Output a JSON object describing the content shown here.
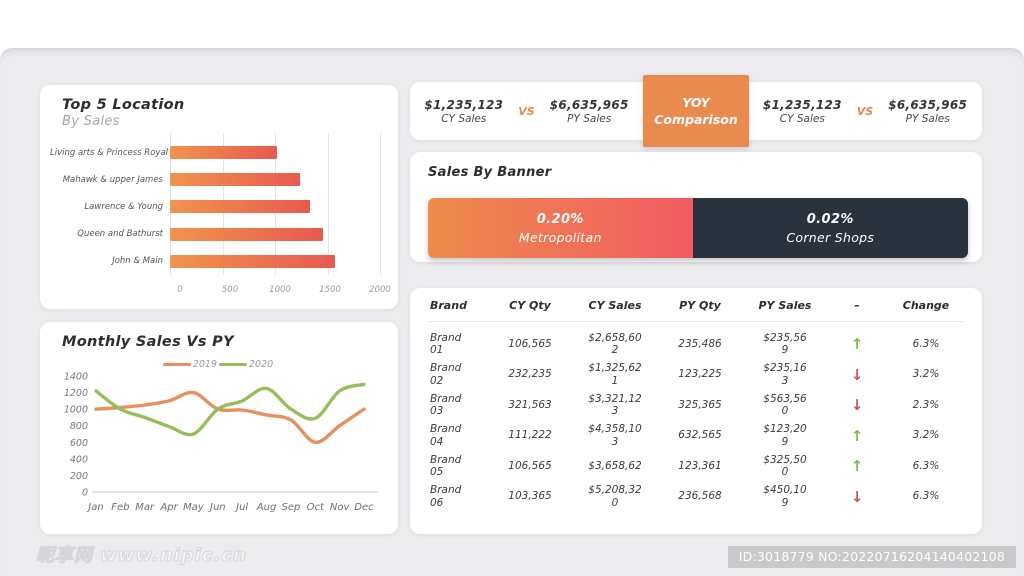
{
  "meta": {
    "watermark_left": "昵享网 www.nipic.cn",
    "watermark_right": "ID:3018779 NO:20220716204140402108"
  },
  "colors": {
    "background": "#ECEBEE",
    "card": "#FFFFFF",
    "accent_orange": "#E98B4E",
    "bar_gradient_start": "#F0944E",
    "bar_gradient_end": "#E7594F",
    "banner_gradient_start": "#EE8B4B",
    "banner_gradient_end": "#F15B61",
    "dark_slate": "#29323D",
    "line_2019": "#E5905E",
    "line_2020": "#96BE5C",
    "arrow_up": "#7CBE4D",
    "arrow_down": "#CB5356"
  },
  "yoy": {
    "button_line1": "YOY",
    "button_line2": "Comparison",
    "left": {
      "cy_value": "$1,235,123",
      "cy_label": "CY Sales",
      "vs": "VS",
      "py_value": "$6,635,965",
      "py_label": "PY Sales"
    },
    "right": {
      "cy_value": "$1,235,123",
      "cy_label": "CY Sales",
      "vs": "VS",
      "py_value": "$6,635,965",
      "py_label": "PY Sales"
    }
  },
  "banner": {
    "title": "Sales By Banner",
    "segments": [
      {
        "value": "0.20%",
        "label": "Metropolitan",
        "width_pct": 49,
        "style": "gradient"
      },
      {
        "value": "0.02%",
        "label": "Corner Shops",
        "width_pct": 51,
        "style": "dark"
      }
    ]
  },
  "table": {
    "headers": [
      "Brand",
      "CY Qty",
      "CY Sales",
      "PY Qty",
      "PY Sales",
      "–",
      "Change"
    ],
    "rows": [
      {
        "brand": "Brand 01",
        "cy_qty": "106,565",
        "cy_sales": "$2,658,602",
        "py_qty": "235,486",
        "py_sales": "$235,569",
        "trend": "up",
        "change": "6.3%"
      },
      {
        "brand": "Brand 02",
        "cy_qty": "232,235",
        "cy_sales": "$1,325,621",
        "py_qty": "123,225",
        "py_sales": "$235,163",
        "trend": "down",
        "change": "3.2%"
      },
      {
        "brand": "Brand 03",
        "cy_qty": "321,563",
        "cy_sales": "$3,321,123",
        "py_qty": "325,365",
        "py_sales": "$563,560",
        "trend": "down",
        "change": "2.3%"
      },
      {
        "brand": "Brand 04",
        "cy_qty": "111,222",
        "cy_sales": "$4,358,103",
        "py_qty": "632,565",
        "py_sales": "$123,209",
        "trend": "up",
        "change": "3.2%"
      },
      {
        "brand": "Brand 05",
        "cy_qty": "106,565",
        "cy_sales": "$3,658,62",
        "py_qty": "123,361",
        "py_sales": "$325,500",
        "trend": "up",
        "change": "6.3%"
      },
      {
        "brand": "Brand 06",
        "cy_qty": "103,365",
        "cy_sales": "$5,208,320",
        "py_qty": "236,568",
        "py_sales": "$450,109",
        "trend": "down",
        "change": "6.3%"
      }
    ]
  },
  "chart_data": [
    {
      "type": "bar",
      "orientation": "horizontal",
      "title": "Top 5 Location",
      "subtitle": "By Sales",
      "categories": [
        "Living arts & Princess Royal",
        "Mahawk & upper James",
        "Lawrence & Young",
        "Queen and Bathurst",
        "John & Main"
      ],
      "values": [
        1020,
        1240,
        1330,
        1460,
        1570
      ],
      "xlim": [
        0,
        2000
      ],
      "xticks": [
        0,
        500,
        1000,
        1500,
        2000
      ],
      "grid": true,
      "bar_color": "orange-red gradient"
    },
    {
      "type": "line",
      "title": "Monthly Sales Vs PY",
      "x": [
        "Jan",
        "Feb",
        "Mar",
        "Apr",
        "May",
        "Jun",
        "Jul",
        "Aug",
        "Sep",
        "Oct",
        "Nov",
        "Dec"
      ],
      "series": [
        {
          "name": "2019",
          "color": "#E5905E",
          "values": [
            1000,
            1020,
            1050,
            1100,
            1200,
            1000,
            990,
            930,
            870,
            600,
            800,
            1000
          ]
        },
        {
          "name": "2020",
          "color": "#96BE5C",
          "values": [
            1220,
            1000,
            900,
            790,
            700,
            1000,
            1100,
            1250,
            1000,
            890,
            1220,
            1300
          ]
        }
      ],
      "ylim": [
        0,
        1400
      ],
      "yticks": [
        0,
        200,
        400,
        600,
        800,
        1000,
        1200,
        1400
      ],
      "legend_position": "top-center",
      "grid": false
    }
  ]
}
